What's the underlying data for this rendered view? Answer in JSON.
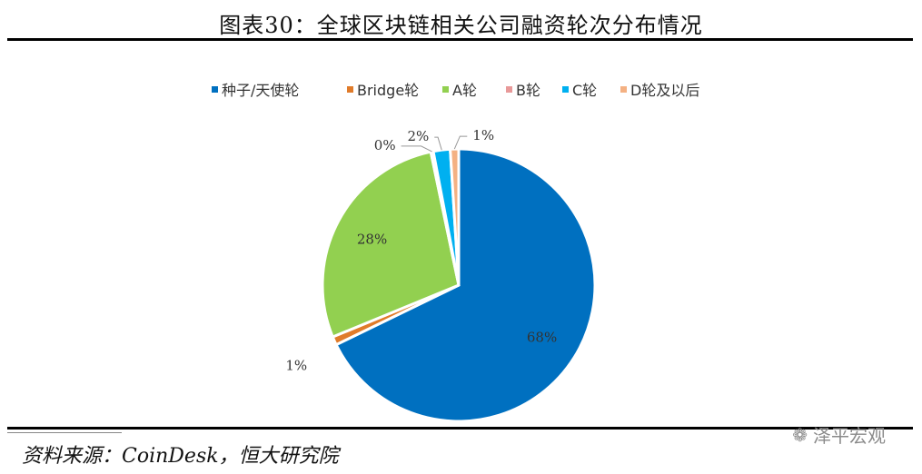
{
  "figure": {
    "title": "图表30：全球区块链相关公司融资轮次分布情况",
    "source": "资料来源：CoinDesk，恒大研究院",
    "watermark": "泽平宏观",
    "watermark_icon": "wechat-icon"
  },
  "chart_data": {
    "type": "pie",
    "title": "",
    "legend_position": "top",
    "series": [
      {
        "name": "种子/天使轮",
        "value": 68,
        "label": "68%",
        "color": "#0070c0"
      },
      {
        "name": "Bridge轮",
        "value": 1,
        "label": "1%",
        "color": "#e07b2a"
      },
      {
        "name": "A轮",
        "value": 28,
        "label": "28%",
        "color": "#92d050"
      },
      {
        "name": "B轮",
        "value": 0.3,
        "label": "0%",
        "color": "#e89999"
      },
      {
        "name": "C轮",
        "value": 2,
        "label": "2%",
        "color": "#00b0f0"
      },
      {
        "name": "D轮及以后",
        "value": 1,
        "label": "1%",
        "color": "#f4b183"
      }
    ]
  }
}
